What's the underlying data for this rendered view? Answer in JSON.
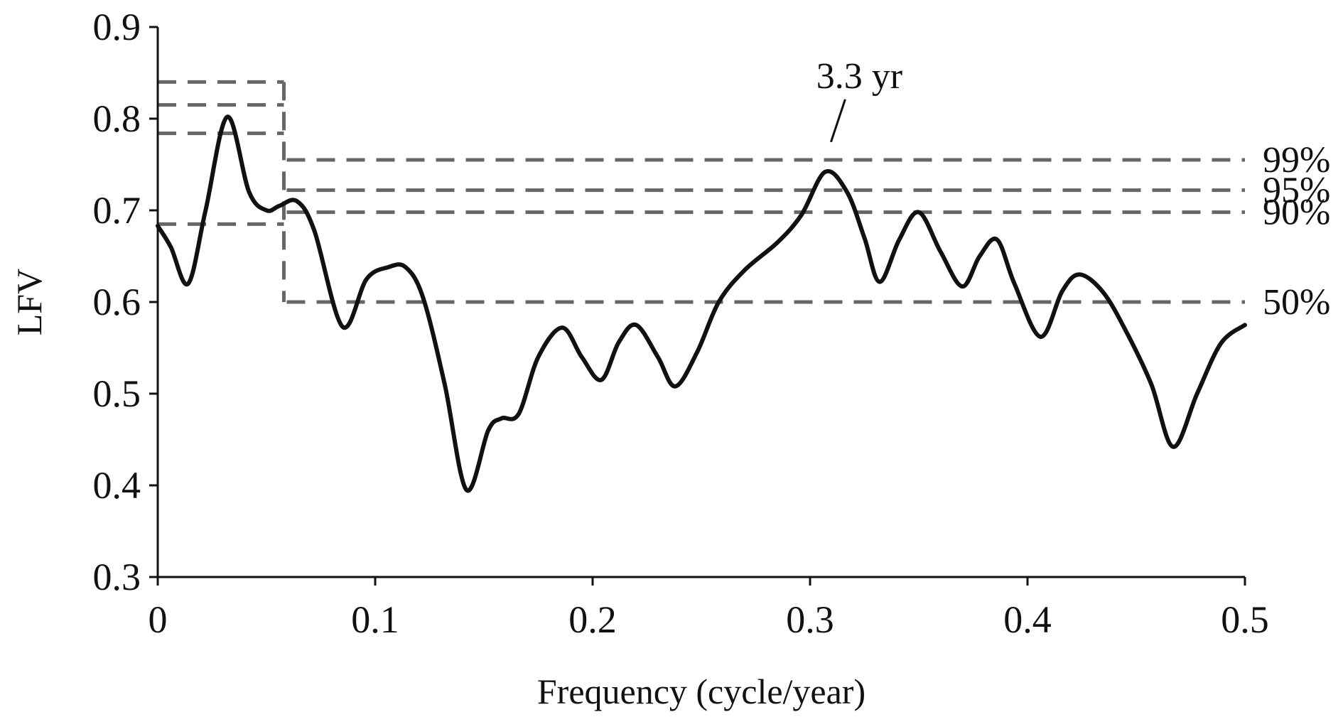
{
  "chart_data": {
    "type": "line",
    "title": "",
    "xlabel": "Frequency (cycle/year)",
    "ylabel": "LFV",
    "xlim": [
      0,
      0.5
    ],
    "ylim": [
      0.3,
      0.9
    ],
    "x_ticks": [
      {
        "value": 0,
        "label": "0"
      },
      {
        "value": 0.1,
        "label": "0.1"
      },
      {
        "value": 0.2,
        "label": "0.2"
      },
      {
        "value": 0.3,
        "label": "0.3"
      },
      {
        "value": 0.4,
        "label": "0.4"
      },
      {
        "value": 0.5,
        "label": "0.5"
      }
    ],
    "y_ticks": [
      {
        "value": 0.3,
        "label": "0.3"
      },
      {
        "value": 0.4,
        "label": "0.4"
      },
      {
        "value": 0.5,
        "label": "0.5"
      },
      {
        "value": 0.6,
        "label": "0.6"
      },
      {
        "value": 0.7,
        "label": "0.7"
      },
      {
        "value": 0.8,
        "label": "0.8"
      },
      {
        "value": 0.9,
        "label": "0.9"
      }
    ],
    "grid": false,
    "colors": {
      "series": "#111111",
      "levels": "#666666",
      "axis": "#111111"
    },
    "series": [
      {
        "name": "LFV",
        "x": [
          0,
          0.006,
          0.014,
          0.022,
          0.032,
          0.042,
          0.05,
          0.056,
          0.064,
          0.072,
          0.085,
          0.096,
          0.106,
          0.114,
          0.122,
          0.132,
          0.142,
          0.152,
          0.158,
          0.166,
          0.175,
          0.186,
          0.195,
          0.204,
          0.212,
          0.22,
          0.23,
          0.238,
          0.248,
          0.258,
          0.27,
          0.285,
          0.296,
          0.307,
          0.317,
          0.325,
          0.332,
          0.341,
          0.35,
          0.36,
          0.37,
          0.378,
          0.386,
          0.394,
          0.406,
          0.416,
          0.424,
          0.435,
          0.446,
          0.457,
          0.467,
          0.478,
          0.489,
          0.5
        ],
        "y": [
          0.683,
          0.66,
          0.62,
          0.7,
          0.802,
          0.72,
          0.7,
          0.705,
          0.71,
          0.678,
          0.573,
          0.625,
          0.638,
          0.638,
          0.605,
          0.51,
          0.395,
          0.46,
          0.473,
          0.478,
          0.54,
          0.572,
          0.54,
          0.515,
          0.556,
          0.575,
          0.54,
          0.508,
          0.545,
          0.6,
          0.635,
          0.665,
          0.695,
          0.742,
          0.72,
          0.67,
          0.622,
          0.668,
          0.698,
          0.655,
          0.617,
          0.65,
          0.668,
          0.62,
          0.562,
          0.612,
          0.63,
          0.61,
          0.565,
          0.51,
          0.442,
          0.5,
          0.555,
          0.575
        ]
      }
    ],
    "significance_levels": [
      {
        "label": "99%",
        "value": 0.755,
        "low_freq_value": 0.84
      },
      {
        "label": "95%",
        "value": 0.722,
        "low_freq_value": 0.815
      },
      {
        "label": "90%",
        "value": 0.698,
        "low_freq_value": 0.784
      },
      {
        "label": "50%",
        "value": 0.6,
        "low_freq_value": 0.685
      }
    ],
    "low_freq_cutoff": 0.058,
    "annotations": [
      {
        "text": "3.3 yr",
        "target_x": 0.307,
        "target_y": 0.742
      }
    ]
  }
}
